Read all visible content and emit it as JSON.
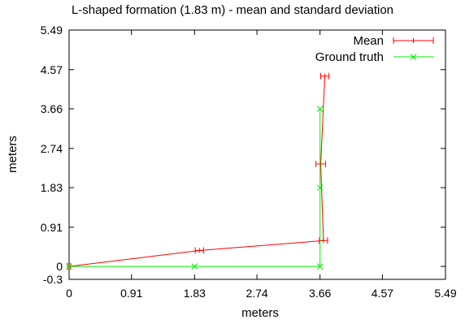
{
  "chart_data": {
    "type": "line",
    "title": "L-shaped formation (1.83 m) - mean and standard deviation",
    "xlabel": "meters",
    "ylabel": "meters",
    "xlim": [
      0,
      5.49
    ],
    "ylim": [
      -0.3,
      5.49
    ],
    "x_ticks": [
      "0",
      "0.91",
      "1.83",
      "2.74",
      "3.66",
      "4.57",
      "5.49"
    ],
    "x_tick_values": [
      0,
      0.91,
      1.83,
      2.74,
      3.66,
      4.57,
      5.49
    ],
    "y_ticks": [
      "-0.3",
      "0",
      "0.91",
      "1.83",
      "2.74",
      "3.66",
      "4.57",
      "5.49"
    ],
    "y_tick_values": [
      -0.3,
      0,
      0.91,
      1.83,
      2.74,
      3.66,
      4.57,
      5.49
    ],
    "legend_position": "top-right",
    "grid": false,
    "series": [
      {
        "name": "Mean",
        "color": "#ff0000",
        "marker": "errorbar",
        "points": [
          {
            "x": 0.0,
            "y": 0.0,
            "xerr": 0.02
          },
          {
            "x": 1.9,
            "y": 0.37,
            "xerr": 0.06
          },
          {
            "x": 3.71,
            "y": 0.6,
            "xerr": 0.06
          },
          {
            "x": 3.67,
            "y": 2.38,
            "xerr": 0.07
          },
          {
            "x": 3.73,
            "y": 4.42,
            "xerr": 0.06
          }
        ]
      },
      {
        "name": "Ground truth",
        "color": "#00ee00",
        "marker": "x",
        "points": [
          {
            "x": 0.0,
            "y": 0.0
          },
          {
            "x": 1.83,
            "y": 0.0
          },
          {
            "x": 3.66,
            "y": 0.0
          },
          {
            "x": 3.66,
            "y": 1.83
          },
          {
            "x": 3.66,
            "y": 3.66
          }
        ]
      }
    ]
  }
}
